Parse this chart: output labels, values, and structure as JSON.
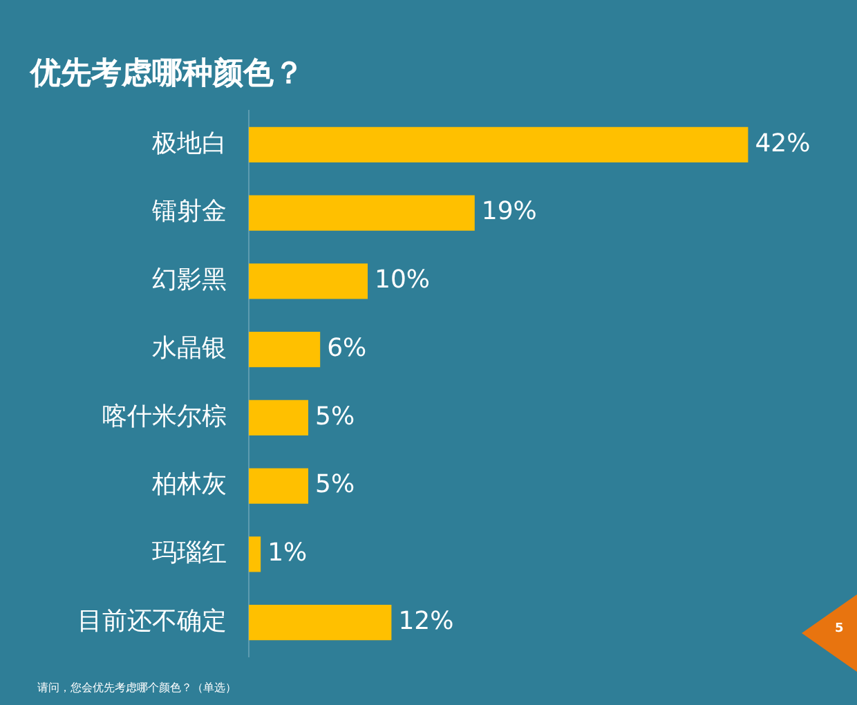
{
  "chart_data": {
    "type": "bar",
    "orientation": "horizontal",
    "title": "优先考虑哪种颜色？",
    "categories": [
      "极地白",
      "镭射金",
      "幻影黑",
      "水晶银",
      "喀什米尔棕",
      "柏林灰",
      "玛瑙红",
      "目前还不确定"
    ],
    "values": [
      42,
      19,
      10,
      6,
      5,
      5,
      1,
      12
    ],
    "value_labels": [
      "42%",
      "19%",
      "10%",
      "6%",
      "5%",
      "5%",
      "1%",
      "12%"
    ],
    "color": "#ffc000",
    "grid": false,
    "legend": false,
    "annotations": [
      "请问，您会优先考虑哪个颜色？（单选）",
      "5"
    ]
  }
}
